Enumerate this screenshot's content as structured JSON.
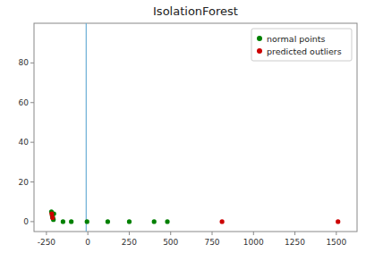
{
  "chart_data": {
    "type": "scatter",
    "title": "IsolationForest",
    "series": [
      {
        "name": "normal points",
        "color": "#008000",
        "x": [
          -220,
          -215,
          -212,
          -208,
          -205,
          -150,
          -100,
          -5,
          120,
          250,
          400,
          480
        ],
        "values": [
          5,
          3,
          2,
          1,
          4,
          0,
          0,
          0,
          0,
          0,
          0,
          0
        ]
      },
      {
        "name": "predicted outliers",
        "color": "#cc0000",
        "x": [
          -218,
          -213,
          810,
          1510
        ],
        "values": [
          4,
          2,
          0,
          0
        ]
      },
      {
        "type": "vline",
        "color": "#6baed6",
        "x": [
          -10
        ]
      }
    ],
    "xlim": [
      -325,
      1625
    ],
    "ylim": [
      -5,
      100
    ],
    "xticks": [
      -250,
      0,
      250,
      500,
      750,
      1000,
      1250,
      1500
    ],
    "yticks": [
      0,
      20,
      40,
      60,
      80
    ],
    "grid": false,
    "legend": "upper right"
  }
}
